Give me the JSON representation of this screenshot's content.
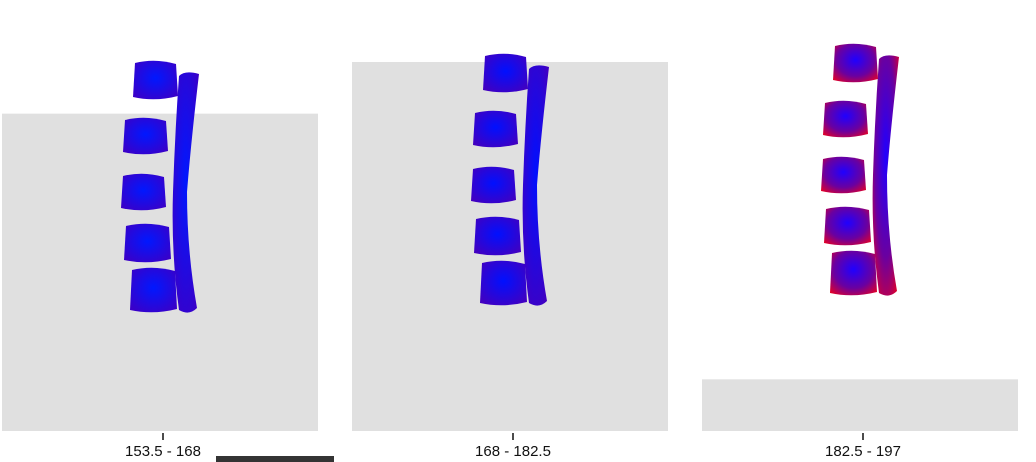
{
  "chart_data": {
    "type": "bar",
    "categories": [
      "153.5 - 168",
      "168 - 182.5",
      "182.5 - 197"
    ],
    "values": [
      0.86,
      1.0,
      0.14
    ],
    "ylim": [
      0,
      1
    ],
    "xlabel": "",
    "ylabel": "",
    "grid": false,
    "legend": "none",
    "bar_color": "#e0e0e0",
    "spine_colors": [
      "#2a00f0",
      "#3600dc",
      "#9a0080"
    ],
    "color_scale": {
      "low": "#0000ff",
      "high": "#e0002a"
    }
  }
}
